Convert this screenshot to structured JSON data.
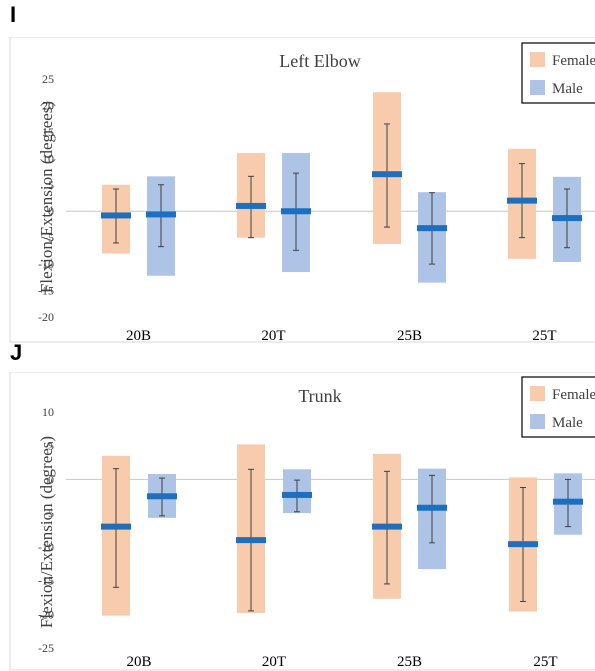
{
  "panels": [
    {
      "letter": "I"
    },
    {
      "letter": "J"
    }
  ],
  "chart_data": [
    {
      "type": "bar",
      "title": "Left Elbow",
      "ylabel": "Flexion/Extension (degrees)",
      "xlabel": "",
      "ylim": [
        -20,
        25
      ],
      "yticks": [
        25,
        20,
        15,
        10,
        5,
        0,
        -5,
        -10,
        -15,
        -20
      ],
      "categories": [
        "20B",
        "20T",
        "25B",
        "25T"
      ],
      "legend_position": "top-right",
      "series": [
        {
          "name": "Female",
          "color": "#f8cbad",
          "range_max": [
            5,
            11,
            22.5,
            11.8
          ],
          "range_min": [
            -8,
            -5,
            -6.2,
            -9
          ],
          "mean": [
            -0.8,
            1,
            7,
            2
          ],
          "err_high": [
            4.2,
            6.6,
            16.5,
            9
          ],
          "err_low": [
            -6,
            -5,
            -3,
            -5
          ]
        },
        {
          "name": "Male",
          "color": "#adc4e7",
          "range_max": [
            6.6,
            11,
            3.6,
            6.5
          ],
          "range_min": [
            -12.2,
            -11.5,
            -13.5,
            -9.6
          ],
          "mean": [
            -0.6,
            0,
            -3.2,
            -1.3
          ],
          "err_high": [
            5,
            7.2,
            3.5,
            4.2
          ],
          "err_low": [
            -6.7,
            -7.4,
            -10,
            -6.9
          ]
        }
      ]
    },
    {
      "type": "bar",
      "title": "Trunk",
      "ylabel": "Flexion/Extension (degrees)",
      "xlabel": "",
      "ylim": [
        -25,
        10
      ],
      "yticks": [
        10,
        5,
        0,
        -5,
        -10,
        -15,
        -20,
        -25
      ],
      "categories": [
        "20B",
        "20T",
        "25B",
        "25T"
      ],
      "legend_position": "top-right",
      "series": [
        {
          "name": "Female",
          "color": "#f8cbad",
          "range_max": [
            3.5,
            5.2,
            3.8,
            0.3
          ],
          "range_min": [
            -20.2,
            -19.8,
            -17.7,
            -19.6
          ],
          "mean": [
            -7,
            -9,
            -7,
            -9.6
          ],
          "err_high": [
            1.6,
            1.5,
            1.2,
            -1.2
          ],
          "err_low": [
            -16,
            -19.5,
            -15.5,
            -18.1
          ]
        },
        {
          "name": "Male",
          "color": "#adc4e7",
          "range_max": [
            0.8,
            1.5,
            1.6,
            0.9
          ],
          "range_min": [
            -5.7,
            -5,
            -13.3,
            -8.2
          ],
          "mean": [
            -2.5,
            -2.3,
            -4.2,
            -3.3
          ],
          "err_high": [
            0.2,
            -0.1,
            0.6,
            0
          ],
          "err_low": [
            -5.4,
            -4.8,
            -9.4,
            -7
          ]
        }
      ]
    }
  ]
}
